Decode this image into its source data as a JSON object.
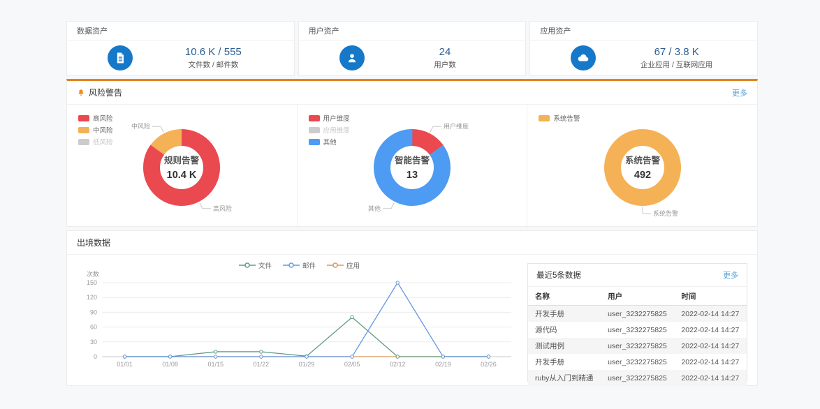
{
  "stat_cards": [
    {
      "title": "数据资产",
      "icon": "document-icon",
      "value": "10.6 K / 555",
      "label": "文件数 / 邮件数"
    },
    {
      "title": "用户资产",
      "icon": "user-icon",
      "value": "24",
      "label": "用户数"
    },
    {
      "title": "应用资产",
      "icon": "cloud-icon",
      "value": "67 / 3.8 K",
      "label": "企业应用 / 互联网应用"
    }
  ],
  "risk": {
    "title": "风险警告",
    "more_label": "更多",
    "bell_icon": "bell-icon"
  },
  "outbound": {
    "title": "出境数据"
  },
  "recent": {
    "title": "最近5条数据",
    "more_label": "更多",
    "columns": [
      "名称",
      "用户",
      "时间"
    ],
    "rows": [
      [
        "开发手册",
        "user_3232275825",
        "2022-02-14 14:27"
      ],
      [
        "源代码",
        "user_3232275825",
        "2022-02-14 14:27"
      ],
      [
        "测试用例",
        "user_3232275825",
        "2022-02-14 14:27"
      ],
      [
        "开发手册",
        "user_3232275825",
        "2022-02-14 14:27"
      ],
      [
        "ruby从入门到精通",
        "user_3232275825",
        "2022-02-14 14:27"
      ]
    ]
  },
  "chart_data": [
    {
      "type": "donut",
      "title": "规则告警",
      "center_value": "10.4 K",
      "legend": [
        {
          "label": "高风险",
          "color": "#e9494f",
          "disabled": false
        },
        {
          "label": "中风险",
          "color": "#f5b155",
          "disabled": false
        },
        {
          "label": "低风险",
          "color": "#cccccc",
          "disabled": true
        }
      ],
      "segments": [
        {
          "label": "高风险",
          "pct": 85,
          "color": "#e9494f"
        },
        {
          "label": "中风险",
          "pct": 15,
          "color": "#f5b155"
        }
      ]
    },
    {
      "type": "donut",
      "title": "智能告警",
      "center_value": "13",
      "legend": [
        {
          "label": "用户维度",
          "color": "#e9494f",
          "disabled": false
        },
        {
          "label": "应用维度",
          "color": "#cccccc",
          "disabled": true
        },
        {
          "label": "其他",
          "color": "#4d9bf2",
          "disabled": false
        }
      ],
      "segments": [
        {
          "label": "用户维度",
          "pct": 15,
          "color": "#e9494f"
        },
        {
          "label": "其他",
          "pct": 85,
          "color": "#4d9bf2"
        }
      ]
    },
    {
      "type": "donut",
      "title": "系统告警",
      "center_value": "492",
      "legend": [
        {
          "label": "系统告警",
          "color": "#f5b155",
          "disabled": false
        }
      ],
      "segments": [
        {
          "label": "系统告警",
          "pct": 100,
          "color": "#f5b155"
        }
      ]
    },
    {
      "type": "line",
      "ylabel": "次数",
      "x": [
        "01/01",
        "01/08",
        "01/15",
        "01/22",
        "01/29",
        "02/05",
        "02/12",
        "02/19",
        "02/26"
      ],
      "yticks": [
        0,
        30,
        60,
        90,
        120,
        150
      ],
      "ylim": [
        0,
        150
      ],
      "legend_position": "top",
      "grid": true,
      "series": [
        {
          "name": "文件",
          "color": "#639c80",
          "values": [
            0,
            0,
            10,
            10,
            1,
            80,
            0,
            0,
            0
          ]
        },
        {
          "name": "邮件",
          "color": "#6398e6",
          "values": [
            0,
            0,
            0,
            0,
            0,
            0,
            150,
            0,
            0
          ]
        },
        {
          "name": "应用",
          "color": "#d6995c",
          "values": [
            0,
            0,
            0,
            0,
            0,
            0,
            0,
            0,
            0
          ]
        }
      ]
    }
  ],
  "colors": {
    "accent_blue": "#1678c8",
    "accent_orange": "#e2831d",
    "link_blue": "#58a1d8",
    "value_blue": "#2b5f94"
  }
}
